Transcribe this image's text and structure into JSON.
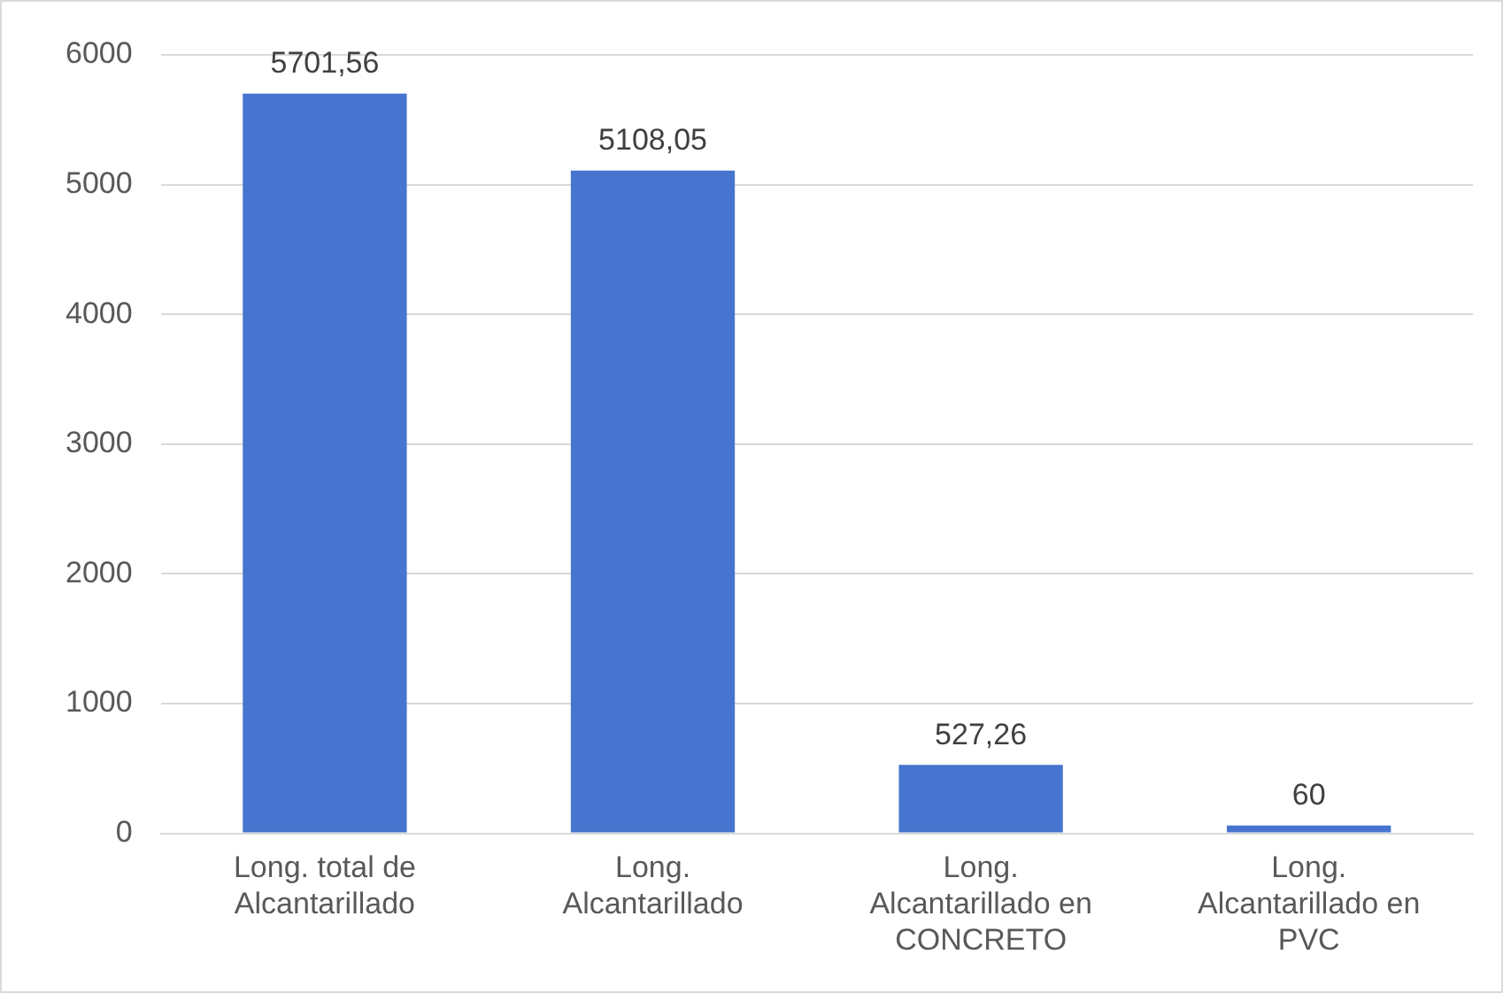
{
  "chart_data": {
    "type": "bar",
    "categories": [
      "Long. total de Alcantarillado",
      "Long. Alcantarillado",
      "Long. Alcantarillado en CONCRETO",
      "Long. Alcantarillado en PVC"
    ],
    "values": [
      5701.56,
      5108.05,
      527.26,
      60
    ],
    "value_labels": [
      "5701,56",
      "5108,05",
      "527,26",
      "60"
    ],
    "color": "#4674cf",
    "ylim": [
      0,
      6000
    ],
    "yticks": [
      0,
      1000,
      2000,
      3000,
      4000,
      5000,
      6000
    ],
    "grid": "y"
  }
}
